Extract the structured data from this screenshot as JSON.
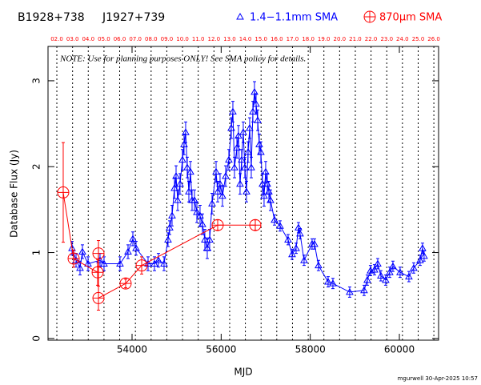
{
  "chart_data": {
    "type": "scatter",
    "title": "B1928+738",
    "subtitle": "J1927+739",
    "annotation": "NOTE: Use for planning purposes ONLY!  See SMA policy for details.",
    "x_label": "MJD",
    "y_label": "Database Flux (Jy)",
    "footer": "mgurwell 30-Apr-2025 10:57",
    "xlim": [
      52114,
      60880
    ],
    "ylim": [
      -0.02,
      3.4
    ],
    "xticks": [
      54000,
      56000,
      58000,
      60000
    ],
    "yticks": [
      0,
      1,
      2,
      3
    ],
    "x2ticks": [
      {
        "value": 52312,
        "label": "02.0"
      },
      {
        "value": 52665,
        "label": "03.0"
      },
      {
        "value": 53017,
        "label": "04.0"
      },
      {
        "value": 53370,
        "label": "05.0"
      },
      {
        "value": 53722,
        "label": "06.0"
      },
      {
        "value": 54075,
        "label": "07.0"
      },
      {
        "value": 54428,
        "label": "08.0"
      },
      {
        "value": 54780,
        "label": "09.0"
      },
      {
        "value": 55133,
        "label": "10.0"
      },
      {
        "value": 55485,
        "label": "11.0"
      },
      {
        "value": 55838,
        "label": "12.0"
      },
      {
        "value": 56191,
        "label": "13.0"
      },
      {
        "value": 56543,
        "label": "14.0"
      },
      {
        "value": 56896,
        "label": "15.0"
      },
      {
        "value": 57248,
        "label": "16.0"
      },
      {
        "value": 57601,
        "label": "17.0"
      },
      {
        "value": 57954,
        "label": "18.0"
      },
      {
        "value": 58306,
        "label": "19.0"
      },
      {
        "value": 58659,
        "label": "20.0"
      },
      {
        "value": 59011,
        "label": "21.0"
      },
      {
        "value": 59364,
        "label": "22.0"
      },
      {
        "value": 59717,
        "label": "23.0"
      },
      {
        "value": 60069,
        "label": "24.0"
      },
      {
        "value": 60422,
        "label": "25.0"
      },
      {
        "value": 60774,
        "label": "26.0"
      }
    ],
    "series": [
      {
        "name": "1.4−1.1mm SMA",
        "color": "#0000ff",
        "marker": "triangle",
        "x": [
          52653,
          52743,
          52832,
          52886,
          53012,
          53281,
          53371,
          53730,
          53910,
          54018,
          54090,
          54359,
          54503,
          54592,
          54718,
          54808,
          54844,
          54898,
          54952,
          54988,
          55024,
          55077,
          55131,
          55167,
          55203,
          55239,
          55275,
          55311,
          55347,
          55401,
          55455,
          55526,
          55580,
          55634,
          55688,
          55742,
          55796,
          55886,
          55922,
          55975,
          56029,
          56101,
          56173,
          56227,
          56263,
          56299,
          56353,
          56388,
          56424,
          56460,
          56496,
          56532,
          56568,
          56604,
          56640,
          56676,
          56712,
          56748,
          56784,
          56820,
          56855,
          56891,
          56927,
          56963,
          56999,
          57035,
          57071,
          57107,
          57197,
          57322,
          57502,
          57592,
          57682,
          57735,
          57771,
          57861,
          58041,
          58095,
          58184,
          58400,
          58508,
          58885,
          59208,
          59280,
          59352,
          59442,
          59514,
          59585,
          59693,
          59783,
          59855,
          60016,
          60214,
          60322,
          60465,
          60519,
          60555
        ],
        "values": [
          1.05,
          0.91,
          0.82,
          1.01,
          0.87,
          0.91,
          0.87,
          0.87,
          1.01,
          1.16,
          1.05,
          0.87,
          0.87,
          0.91,
          0.87,
          1.15,
          1.29,
          1.43,
          1.75,
          1.89,
          1.61,
          1.8,
          2.08,
          2.26,
          2.4,
          1.99,
          1.71,
          1.94,
          1.61,
          1.61,
          1.47,
          1.43,
          1.33,
          1.15,
          1.05,
          1.15,
          1.57,
          1.94,
          1.71,
          1.8,
          1.66,
          1.89,
          2.08,
          2.45,
          2.64,
          1.99,
          2.22,
          2.36,
          1.8,
          2.08,
          2.4,
          1.99,
          1.71,
          2.17,
          2.45,
          1.99,
          2.64,
          2.87,
          2.73,
          2.54,
          2.26,
          2.17,
          1.8,
          1.66,
          1.94,
          1.8,
          1.71,
          1.61,
          1.38,
          1.31,
          1.15,
          0.98,
          1.05,
          1.29,
          1.22,
          0.91,
          1.1,
          1.1,
          0.85,
          0.66,
          0.64,
          0.54,
          0.56,
          0.68,
          0.79,
          0.8,
          0.87,
          0.73,
          0.68,
          0.77,
          0.84,
          0.77,
          0.72,
          0.82,
          0.91,
          1.05,
          0.96
        ],
        "errors": [
          0.08,
          0.08,
          0.08,
          0.08,
          0.08,
          0.08,
          0.08,
          0.08,
          0.08,
          0.08,
          0.08,
          0.08,
          0.08,
          0.08,
          0.08,
          0.08,
          0.08,
          0.12,
          0.12,
          0.12,
          0.12,
          0.12,
          0.12,
          0.12,
          0.12,
          0.12,
          0.12,
          0.12,
          0.12,
          0.12,
          0.12,
          0.12,
          0.12,
          0.12,
          0.12,
          0.12,
          0.12,
          0.12,
          0.12,
          0.12,
          0.12,
          0.12,
          0.12,
          0.12,
          0.12,
          0.12,
          0.12,
          0.12,
          0.12,
          0.12,
          0.12,
          0.12,
          0.12,
          0.12,
          0.12,
          0.12,
          0.12,
          0.12,
          0.12,
          0.12,
          0.12,
          0.12,
          0.12,
          0.12,
          0.12,
          0.12,
          0.12,
          0.12,
          0.06,
          0.06,
          0.06,
          0.06,
          0.06,
          0.06,
          0.06,
          0.06,
          0.06,
          0.06,
          0.06,
          0.06,
          0.06,
          0.06,
          0.06,
          0.06,
          0.06,
          0.06,
          0.06,
          0.06,
          0.06,
          0.06,
          0.06,
          0.06,
          0.06,
          0.06,
          0.06,
          0.06,
          0.06
        ]
      },
      {
        "name": "870μm SMA",
        "color": "#ff0000",
        "marker": "circle-plus",
        "x": [
          52455,
          52689,
          53228,
          53246,
          53246,
          53856,
          54216,
          55922,
          56766
        ],
        "values": [
          1.7,
          0.93,
          0.77,
          0.99,
          0.47,
          0.64,
          0.85,
          1.32,
          1.32
        ],
        "errors": [
          0.58,
          0.1,
          0.15,
          0.15,
          0.14,
          0.05,
          0.1,
          0.06,
          0.06
        ]
      }
    ]
  }
}
